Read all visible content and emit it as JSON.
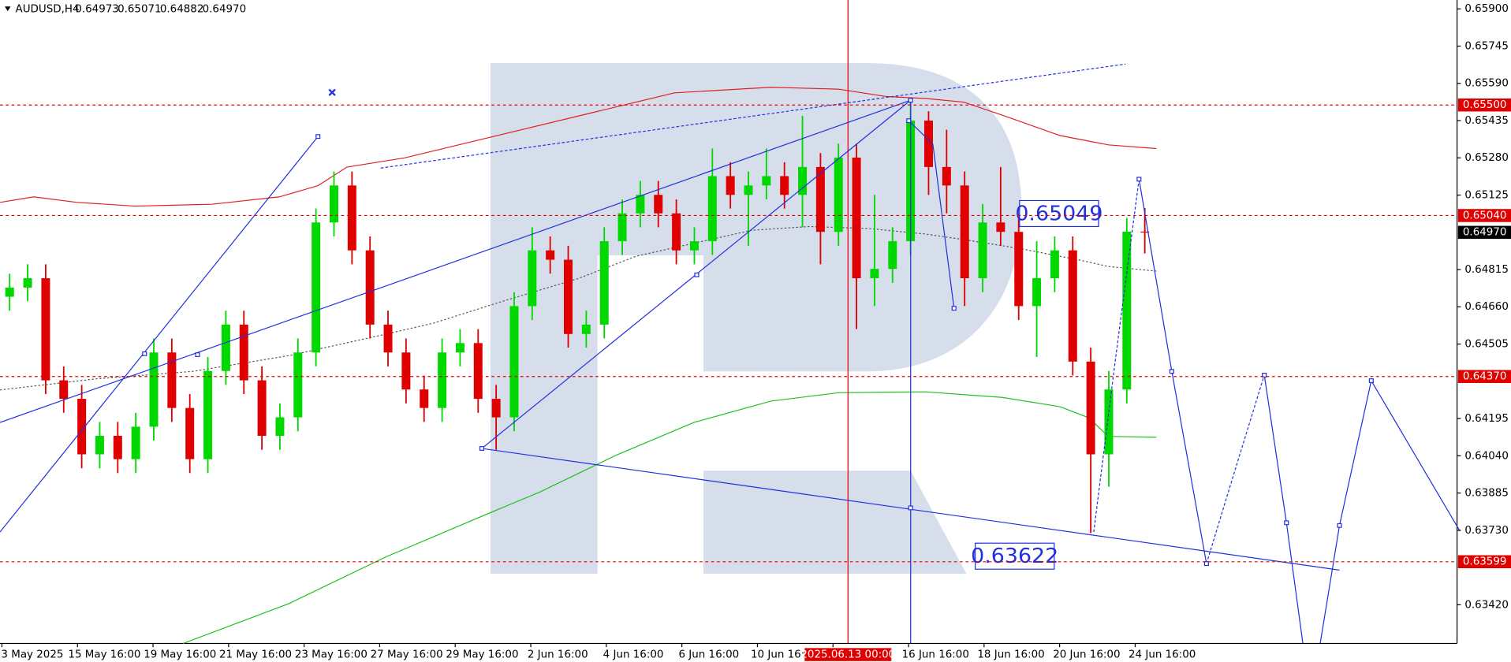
{
  "chart_data": {
    "type": "candlestick",
    "symbol": "AUDUSD,H4",
    "ohlc_header": [
      "0.64973",
      "0.65071",
      "0.64882",
      "0.64970"
    ],
    "up_color": "#00d800",
    "down_color": "#e00000",
    "open": [
      0.64702,
      0.6474,
      0.64779,
      0.64354,
      0.64277,
      0.64046,
      0.64123,
      0.64026,
      0.64161,
      0.6447,
      0.64239,
      0.64026,
      0.64393,
      0.64586,
      0.64354,
      0.64123,
      0.642,
      0.6447,
      0.65011,
      0.65165,
      0.64895,
      0.64586,
      0.6447,
      0.64316,
      0.64239,
      0.6447,
      0.64509,
      0.64277,
      0.642,
      0.64663,
      0.64895,
      0.64856,
      0.64547,
      0.64586,
      0.64933,
      0.65049,
      0.65126,
      0.65049,
      0.64895,
      0.64933,
      0.65204,
      0.65126,
      0.65165,
      0.65204,
      0.65126,
      0.65242,
      0.64972,
      0.65281,
      0.64779,
      0.64818,
      0.64933,
      0.65435,
      0.65242,
      0.65165,
      0.64779,
      0.65011,
      0.64972,
      0.64663,
      0.64779,
      0.64895,
      0.64432,
      0.64046,
      0.64316,
      0.64973
    ],
    "high": [
      0.64798,
      0.64837,
      0.64837,
      0.64412,
      0.64335,
      0.64181,
      0.64181,
      0.64219,
      0.64528,
      0.64528,
      0.64297,
      0.64451,
      0.64644,
      0.64644,
      0.64412,
      0.64258,
      0.64528,
      0.65069,
      0.65223,
      0.65223,
      0.64953,
      0.64644,
      0.64528,
      0.64374,
      0.64528,
      0.64567,
      0.64567,
      0.64335,
      0.64721,
      0.64991,
      0.64953,
      0.64914,
      0.64644,
      0.64991,
      0.65107,
      0.65184,
      0.65184,
      0.65107,
      0.64991,
      0.65319,
      0.65262,
      0.65223,
      0.65319,
      0.65262,
      0.65455,
      0.653,
      0.65339,
      0.65339,
      0.65126,
      0.64991,
      0.65512,
      0.65474,
      0.65397,
      0.65223,
      0.65088,
      0.65242,
      0.6503,
      0.64933,
      0.64953,
      0.64953,
      0.6449,
      0.64393,
      0.6503,
      0.65071
    ],
    "low": [
      0.64644,
      0.64683,
      0.64297,
      0.64219,
      0.63988,
      0.63988,
      0.63968,
      0.63968,
      0.64104,
      0.64181,
      0.63968,
      0.63968,
      0.64335,
      0.64297,
      0.64065,
      0.64065,
      0.64142,
      0.64412,
      0.64953,
      0.64837,
      0.64528,
      0.64412,
      0.64258,
      0.64181,
      0.64181,
      0.64412,
      0.64219,
      0.64065,
      0.64142,
      0.64605,
      0.64798,
      0.6449,
      0.6449,
      0.64528,
      0.64876,
      0.64991,
      0.64991,
      0.64837,
      0.64837,
      0.64876,
      0.65069,
      0.64914,
      0.65107,
      0.65069,
      0.64991,
      0.64837,
      0.64914,
      0.64567,
      0.64663,
      0.6476,
      0.64876,
      0.65126,
      0.65049,
      0.64663,
      0.64721,
      0.64914,
      0.64605,
      0.64451,
      0.64721,
      0.64374,
      0.63718,
      0.63911,
      0.64258,
      0.64882
    ],
    "close": [
      0.6474,
      0.64779,
      0.64354,
      0.64277,
      0.64046,
      0.64123,
      0.64026,
      0.64161,
      0.6447,
      0.64239,
      0.64026,
      0.64393,
      0.64586,
      0.64354,
      0.64123,
      0.642,
      0.6447,
      0.65011,
      0.65165,
      0.64895,
      0.64586,
      0.6447,
      0.64316,
      0.64239,
      0.6447,
      0.64509,
      0.64277,
      0.642,
      0.64663,
      0.64895,
      0.64856,
      0.64547,
      0.64586,
      0.64933,
      0.65049,
      0.65126,
      0.65049,
      0.64895,
      0.64933,
      0.65204,
      0.65126,
      0.65165,
      0.65204,
      0.65126,
      0.65242,
      0.64972,
      0.65281,
      0.64779,
      0.64818,
      0.64933,
      0.65435,
      0.65242,
      0.65165,
      0.64779,
      0.65011,
      0.64972,
      0.64663,
      0.64779,
      0.64895,
      0.64432,
      0.64046,
      0.64316,
      0.64973,
      0.6497
    ],
    "ylim": [
      0.63259,
      0.65937
    ],
    "yticks": [
      {
        "value": 0.659,
        "label": "0.65900"
      },
      0.65745,
      {
        "value": 0.6559,
        "label": "0.65590"
      },
      0.65435,
      {
        "value": 0.6528,
        "label": "0.65280"
      },
      0.65125,
      0.64815,
      {
        "value": 0.6466,
        "label": "0.64660"
      },
      0.64505,
      0.64195,
      {
        "value": 0.6404,
        "label": "0.64040"
      },
      0.63885,
      {
        "value": 0.6373,
        "label": "0.63730"
      },
      {
        "value": 0.6342,
        "label": "0.63420"
      }
    ],
    "x_labels": [
      "13 May 2025",
      "15 May 16:00",
      "19 May 16:00",
      "21 May 16:00",
      "23 May 16:00",
      "27 May 16:00",
      "29 May 16:00",
      "2 Jun 16:00",
      "4 Jun 16:00",
      "6 Jun 16:00",
      "10 Jun 16:00",
      "",
      "16 Jun 16:00",
      "18 Jun 16:00",
      "20 Jun 16:00",
      "24 Jun 16:00"
    ],
    "crosshair_label": "2025.06.13 00:00",
    "level_color": "#e00000",
    "levels": [
      {
        "value": 0.655,
        "label": "0.65500"
      },
      {
        "value": 0.6504,
        "label": "0.65040"
      },
      {
        "value": 0.6437,
        "label": "0.64370"
      },
      {
        "value": 0.63599,
        "label": "0.63599"
      }
    ],
    "current_price": {
      "value": 0.6497,
      "label": "0.64970"
    },
    "annotations": [
      "0.65049",
      "0.63622"
    ]
  }
}
